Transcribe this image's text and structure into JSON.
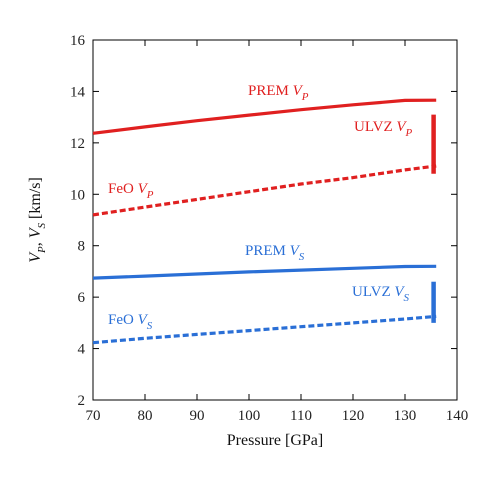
{
  "chart_data": {
    "type": "line",
    "xlabel": "Pressure [GPa]",
    "ylabel": {
      "v1": "V",
      "v1_sub": "P",
      "sep": ", ",
      "v2": "V",
      "v2_sub": "S",
      "units": " [km/s]"
    },
    "xlim": [
      70,
      140
    ],
    "ylim": [
      2,
      16
    ],
    "x_ticks": [
      70,
      80,
      90,
      100,
      110,
      120,
      130,
      140
    ],
    "y_ticks": [
      2,
      4,
      6,
      8,
      10,
      12,
      14,
      16
    ],
    "grid": false,
    "colors": {
      "vp": "#e02020",
      "vs": "#2a6fd6"
    },
    "series": [
      {
        "label": {
          "text": "PREM ",
          "v": "V",
          "sub": "P"
        },
        "color": "#e02020",
        "dash": false,
        "x": [
          70,
          80,
          90,
          100,
          110,
          120,
          130,
          136
        ],
        "y": [
          12.37,
          12.62,
          12.86,
          13.08,
          13.29,
          13.48,
          13.65,
          13.66
        ]
      },
      {
        "label": {
          "text": "FeO ",
          "v": "V",
          "sub": "P"
        },
        "color": "#e02020",
        "dash": true,
        "x": [
          70,
          80,
          90,
          100,
          110,
          120,
          130,
          136
        ],
        "y": [
          9.2,
          9.5,
          9.8,
          10.1,
          10.4,
          10.65,
          10.95,
          11.1
        ]
      },
      {
        "label": {
          "text": "PREM ",
          "v": "V",
          "sub": "S"
        },
        "color": "#2a6fd6",
        "dash": false,
        "x": [
          70,
          80,
          90,
          100,
          110,
          120,
          130,
          136
        ],
        "y": [
          6.74,
          6.82,
          6.9,
          6.98,
          7.05,
          7.12,
          7.19,
          7.2
        ]
      },
      {
        "label": {
          "text": "FeO ",
          "v": "V",
          "sub": "S"
        },
        "color": "#2a6fd6",
        "dash": true,
        "x": [
          70,
          80,
          90,
          100,
          110,
          120,
          130,
          136
        ],
        "y": [
          4.23,
          4.4,
          4.55,
          4.7,
          4.85,
          5.0,
          5.15,
          5.25
        ]
      }
    ],
    "ulvz_bars": [
      {
        "label": {
          "text": "ULVZ ",
          "v": "V",
          "sub": "P"
        },
        "color": "#e02020",
        "x": 135.5,
        "y_from": 10.8,
        "y_to": 13.1
      },
      {
        "label": {
          "text": "ULVZ ",
          "v": "V",
          "sub": "S"
        },
        "color": "#2a6fd6",
        "x": 135.5,
        "y_from": 5.0,
        "y_to": 6.6
      }
    ]
  }
}
